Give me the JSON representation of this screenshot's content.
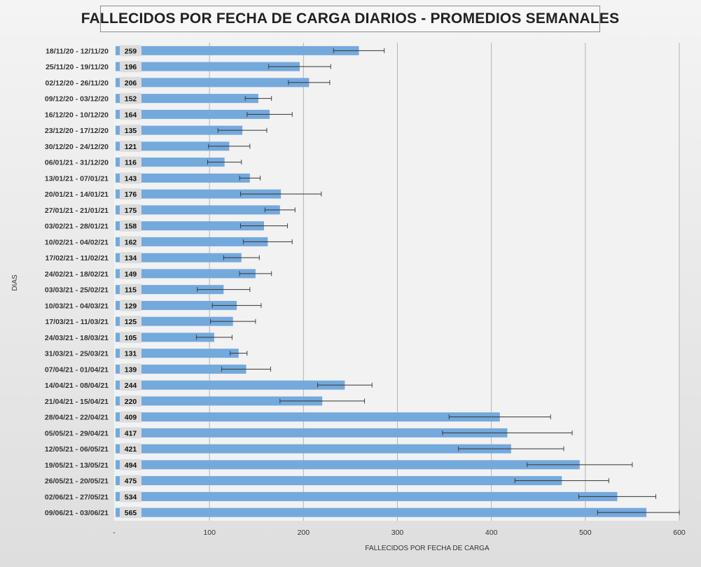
{
  "chart_data": {
    "type": "bar",
    "orientation": "horizontal",
    "title": "FALLECIDOS POR FECHA DE CARGA DIARIOS - PROMEDIOS SEMANALES",
    "xlabel": "FALLECIDOS POR FECHA DE CARGA",
    "ylabel": "DIAS",
    "xlim": [
      0,
      600
    ],
    "x_ticks": [
      "-",
      "100",
      "200",
      "300",
      "400",
      "500",
      "600"
    ],
    "grid": "vertical",
    "bar_color": "#74a9dc",
    "categories": [
      "18/11/20 - 12/11/20",
      "25/11/20 - 19/11/20",
      "02/12/20 - 26/11/20",
      "09/12/20 - 03/12/20",
      "16/12/20 - 10/12/20",
      "23/12/20 - 17/12/20",
      "30/12/20 - 24/12/20",
      "06/01/21 - 31/12/20",
      "13/01/21 - 07/01/21",
      "20/01/21 - 14/01/21",
      "27/01/21 - 21/01/21",
      "03/02/21 - 28/01/21",
      "10/02/21 - 04/02/21",
      "17/02/21 - 11/02/21",
      "24/02/21 - 18/02/21",
      "03/03/21 - 25/02/21",
      "10/03/21 - 04/03/21",
      "17/03/21 - 11/03/21",
      "24/03/21 - 18/03/21",
      "31/03/21 - 25/03/21",
      "07/04/21 - 01/04/21",
      "14/04/21 - 08/04/21",
      "21/04/21 - 15/04/21",
      "28/04/21 - 22/04/21",
      "05/05/21 - 29/04/21",
      "12/05/21 - 06/05/21",
      "19/05/21 - 13/05/21",
      "26/05/21 - 20/05/21",
      "02/06/21 - 27/05/21",
      "09/06/21 - 03/06/21"
    ],
    "values": [
      259,
      196,
      206,
      152,
      164,
      135,
      121,
      116,
      143,
      176,
      175,
      158,
      162,
      134,
      149,
      115,
      129,
      125,
      105,
      131,
      139,
      244,
      220,
      409,
      417,
      421,
      494,
      475,
      534,
      565
    ],
    "error_low": [
      232,
      163,
      184,
      138,
      140,
      109,
      99,
      98,
      132,
      133,
      159,
      133,
      136,
      115,
      132,
      87,
      103,
      101,
      86,
      122,
      113,
      215,
      175,
      355,
      348,
      365,
      438,
      425,
      493,
      513
    ],
    "error_high": [
      286,
      229,
      228,
      166,
      188,
      161,
      143,
      134,
      154,
      219,
      191,
      183,
      188,
      153,
      166,
      143,
      155,
      149,
      124,
      140,
      165,
      273,
      265,
      463,
      486,
      477,
      550,
      525,
      575,
      600
    ],
    "legend": "none"
  }
}
